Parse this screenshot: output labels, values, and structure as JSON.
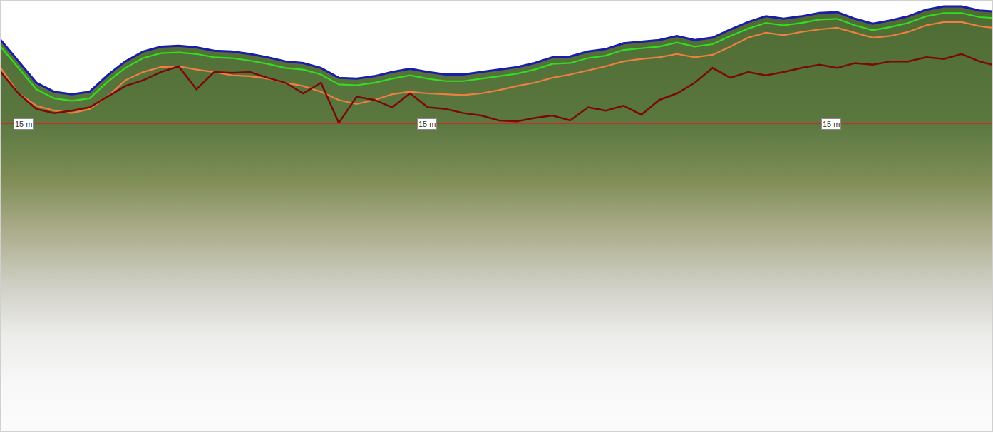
{
  "chart_data": {
    "type": "line",
    "x": [
      0,
      25,
      50,
      75,
      100,
      125,
      150,
      175,
      200,
      225,
      250,
      275,
      300,
      325,
      350,
      375,
      400,
      425,
      450,
      475,
      500,
      525,
      550,
      575,
      600,
      625,
      650,
      675,
      700,
      725,
      750,
      775,
      800,
      825,
      850,
      875,
      900,
      925,
      950,
      975,
      1000,
      1025,
      1050,
      1075,
      1100,
      1125,
      1150,
      1175,
      1200,
      1225,
      1250,
      1275,
      1300,
      1325,
      1350,
      1375,
      1393
    ],
    "xlim": [
      0,
      1393
    ],
    "ylim": [
      52.5,
      0
    ],
    "tick_labels": false,
    "grid": false,
    "series": [
      {
        "color": "#1c1ca8",
        "values": [
          4.8,
          7.4,
          10.0,
          11.1,
          11.4,
          11.1,
          9.1,
          7.4,
          6.2,
          5.6,
          5.5,
          5.7,
          6.1,
          6.2,
          6.5,
          6.9,
          7.4,
          7.6,
          8.2,
          9.4,
          9.5,
          9.2,
          8.7,
          8.3,
          8.7,
          9.0,
          9.0,
          8.7,
          8.4,
          8.1,
          7.6,
          6.9,
          6.8,
          6.2,
          5.9,
          5.2,
          5.0,
          4.8,
          4.3,
          4.8,
          4.5,
          3.5,
          2.6,
          1.9,
          2.2,
          1.9,
          1.5,
          1.4,
          2.2,
          2.8,
          2.4,
          1.9,
          1.1,
          0.7,
          0.7,
          1.2,
          1.3
        ]
      },
      {
        "color": "#33dd22",
        "values": [
          5.6,
          8.2,
          10.8,
          11.9,
          12.2,
          11.9,
          9.9,
          8.2,
          7.0,
          6.4,
          6.3,
          6.5,
          6.9,
          7.0,
          7.3,
          7.7,
          8.2,
          8.4,
          9.0,
          10.2,
          10.3,
          10.0,
          9.5,
          9.1,
          9.5,
          9.8,
          9.8,
          9.5,
          9.2,
          8.9,
          8.4,
          7.7,
          7.6,
          7.0,
          6.7,
          6.0,
          5.8,
          5.6,
          5.1,
          5.6,
          5.3,
          4.3,
          3.4,
          2.7,
          3.0,
          2.7,
          2.3,
          2.2,
          3.0,
          3.6,
          3.2,
          2.7,
          1.9,
          1.5,
          1.5,
          2.0,
          2.1
        ]
      },
      {
        "color": "#f08040",
        "values": [
          8.2,
          11.3,
          12.8,
          13.4,
          13.7,
          13.2,
          11.7,
          9.7,
          8.7,
          8.1,
          8.0,
          8.4,
          8.7,
          9.1,
          9.2,
          9.5,
          10.0,
          10.4,
          11.1,
          12.1,
          12.6,
          12.1,
          11.4,
          11.1,
          11.3,
          11.4,
          11.5,
          11.3,
          10.9,
          10.4,
          10.0,
          9.4,
          9.0,
          8.5,
          8.0,
          7.4,
          7.1,
          6.9,
          6.5,
          6.9,
          6.6,
          5.6,
          4.5,
          3.9,
          4.2,
          3.8,
          3.5,
          3.3,
          3.9,
          4.5,
          4.3,
          3.8,
          3.0,
          2.6,
          2.6,
          3.1,
          3.3
        ]
      },
      {
        "color": "#7a0a0a",
        "values": [
          8.7,
          11.3,
          13.2,
          13.7,
          13.4,
          13.0,
          11.7,
          10.4,
          9.7,
          8.7,
          8.0,
          10.8,
          8.7,
          8.8,
          8.7,
          9.4,
          10.0,
          11.3,
          10.0,
          14.9,
          11.7,
          12.1,
          13.0,
          11.3,
          13.0,
          13.2,
          13.7,
          14.0,
          14.6,
          14.7,
          14.3,
          14.0,
          14.6,
          13.0,
          13.4,
          12.8,
          13.9,
          12.1,
          11.3,
          10.0,
          8.2,
          9.4,
          8.7,
          9.1,
          8.7,
          8.2,
          7.8,
          8.2,
          7.6,
          7.8,
          7.4,
          7.4,
          6.9,
          7.1,
          6.5,
          7.4,
          7.8
        ]
      }
    ],
    "reference_line": {
      "value": 15,
      "color": "#cc2a2a"
    },
    "annotations": [
      {
        "x": 18,
        "y": 15,
        "text": "15 m"
      },
      {
        "x": 585,
        "y": 15,
        "text": "15 m"
      },
      {
        "x": 1153,
        "y": 15,
        "text": "15 m"
      }
    ]
  }
}
